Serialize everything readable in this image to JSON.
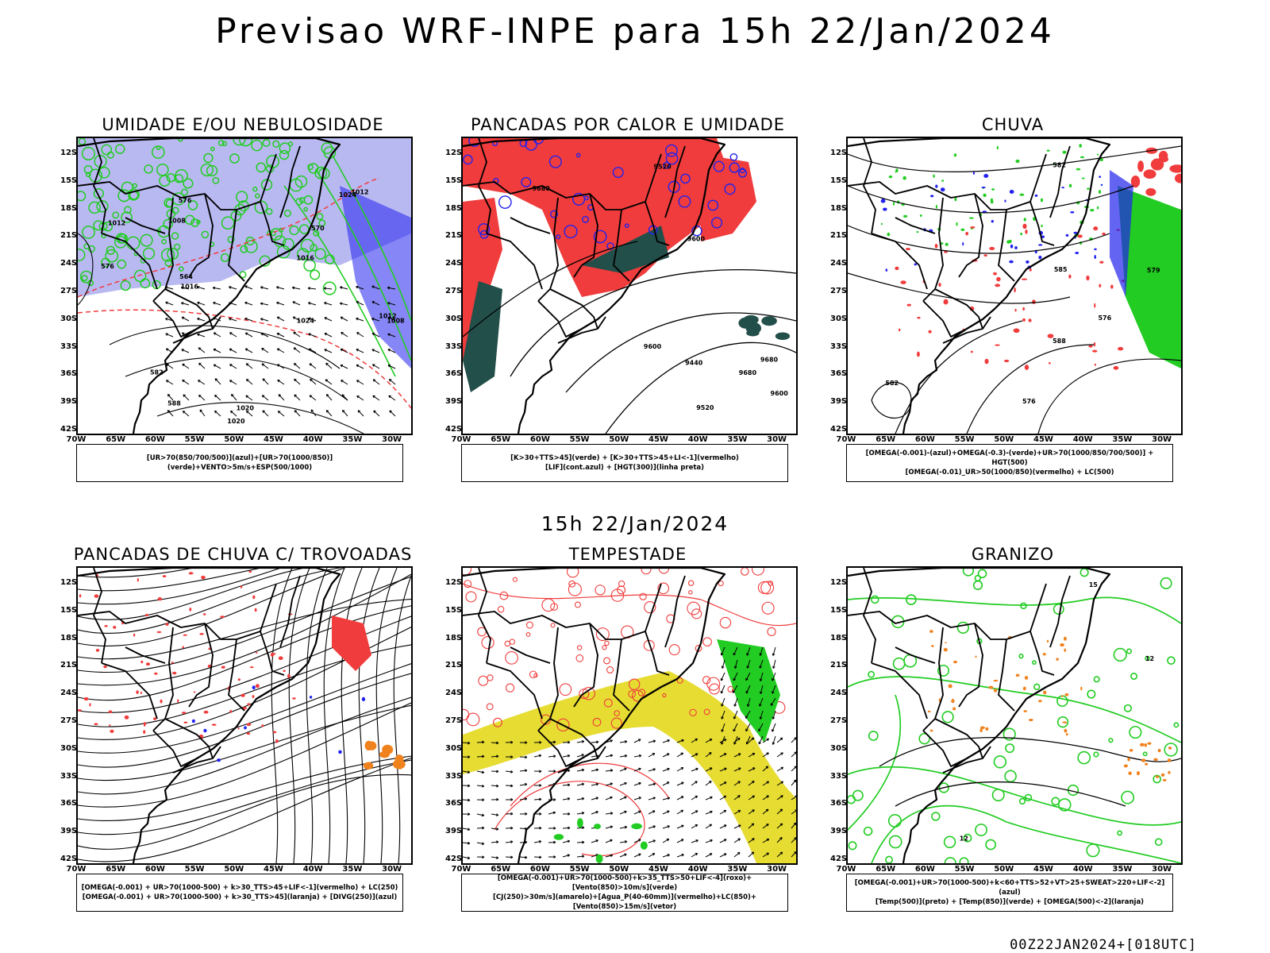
{
  "title": "Previsao WRF-INPE  para 15h 22/Jan/2024",
  "subtitle": "15h 22/Jan/2024",
  "footer": "00Z22JAN2024+[018UTC]",
  "lat_labels": [
    "12S",
    "15S",
    "18S",
    "21S",
    "24S",
    "27S",
    "30S",
    "33S",
    "36S",
    "39S",
    "42S"
  ],
  "lon_labels": [
    "70W",
    "65W",
    "60W",
    "55W",
    "50W",
    "45W",
    "40W",
    "35W",
    "30W"
  ],
  "colors": {
    "red": "#f03c3c",
    "green": "#22cc22",
    "blue": "#2222ee",
    "lavender": "#b9b9f2",
    "darkteal": "#234f4a",
    "yellow": "#e6dc32",
    "orange": "#f0821e"
  },
  "panels": [
    {
      "title": "UMIDADE E/OU NEBULOSIDADE",
      "legend": [
        "[UR>70(850/700/500)](azul)+[UR>70(1000/850)](verde)+VENTO>5m/s+ESP(500/1000)"
      ],
      "contour_labels": [
        "1012",
        "1008",
        "1016",
        "1020",
        "1024",
        "1020",
        "1024",
        "1016",
        "1012",
        "1008",
        "1012",
        "576",
        "570",
        "582",
        "576",
        "588",
        "564"
      ]
    },
    {
      "title": "PANCADAS POR CALOR E UMIDADE",
      "legend": [
        "[K>30+TTS>45](verde) + [K>30+TTS>45+LI<-1](vermelho)",
        "[LIF](cont.azul) + [HGT(300)](linha preta)"
      ],
      "contour_labels": [
        "9680",
        "9680",
        "9600",
        "9520",
        "9440",
        "9600",
        "9520",
        "9600",
        "9680"
      ]
    },
    {
      "title": "CHUVA",
      "legend": [
        "[OMEGA(-0.001)-(azul)+OMEGA(-0.3)-(verde)+UR>70(1000/850/700/500)] + HGT(500)",
        "[OMEGA(-0.01)_UR>50(1000/850)(vermelho) + LC(500)"
      ],
      "contour_labels": [
        "588",
        "582",
        "576",
        "585",
        "579",
        "576",
        "582"
      ]
    },
    {
      "title": "PANCADAS DE CHUVA C/ TROVOADAS",
      "legend": [
        "[OMEGA(-0.001) + UR>70(1000-500) + k>30_TTS>45+LIF<-1](vermelho) + LC(250)",
        "[OMEGA(-0.001) + UR>70(1000-500) + k>30_TTS>45](laranja) + [DIVG(250)](azul)"
      ],
      "contour_labels": []
    },
    {
      "title": "TEMPESTADE",
      "legend": [
        "[OMEGA(-0.001)+UR>70(1000-500)+k>35_TTS>50+LIF<-4](roxo)+[Vento(850)>10m/s](verde)",
        "[CJ(250)>30m/s](amarelo)+[Agua_P(40-60mm)](vermelho)+LC(850)+[Vento(850)>15m/s](vetor)"
      ],
      "contour_labels": []
    },
    {
      "title": "GRANIZO",
      "legend": [
        "[OMEGA(-0.001)+UR>70(1000-500)+k<60+TTS>52+VT>25+SWEAT>220+LIF<-2](azul)",
        "[Temp(500)](preto) + [Temp(850)](verde) + [OMEGA(500)<-2](laranja)"
      ],
      "contour_labels": [
        "12",
        "12",
        "15"
      ]
    }
  ]
}
